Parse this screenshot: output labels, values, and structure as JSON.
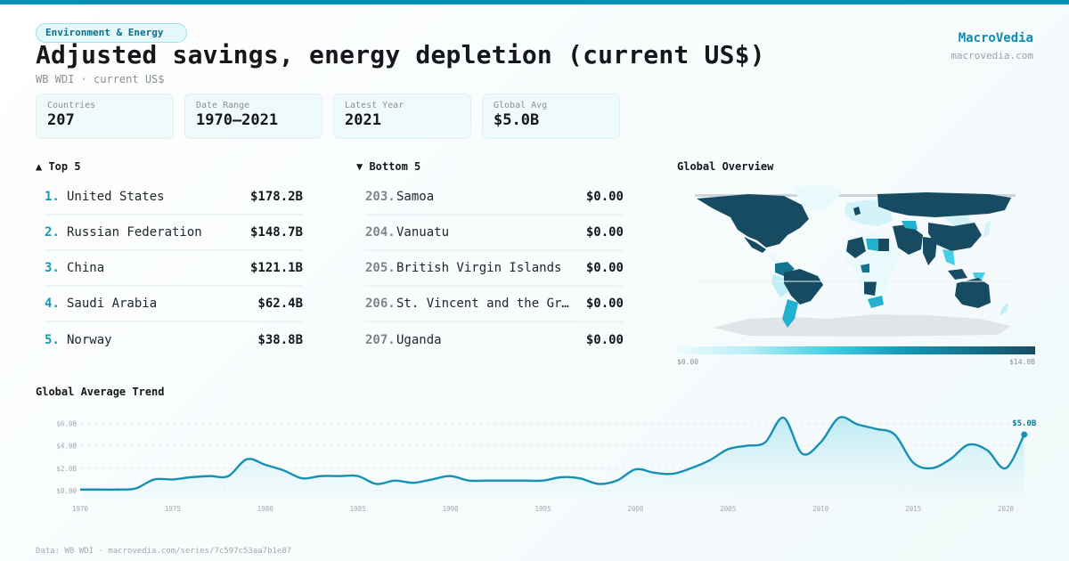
{
  "header": {
    "category_pill": "Environment & Energy",
    "title": "Adjusted savings, energy depletion (current US$)",
    "subtitle": "WB WDI · current US$"
  },
  "brand": {
    "name": "MacroVedia",
    "url": "macrovedia.com"
  },
  "stats": [
    {
      "label": "Countries",
      "value": "207"
    },
    {
      "label": "Date Range",
      "value": "1970–2021"
    },
    {
      "label": "Latest Year",
      "value": "2021"
    },
    {
      "label": "Global Avg",
      "value": "$5.0B"
    }
  ],
  "top5": {
    "title": "▲ Top 5",
    "items": [
      {
        "rank": "1.",
        "name": "United States",
        "value": "$178.2B"
      },
      {
        "rank": "2.",
        "name": "Russian Federation",
        "value": "$148.7B"
      },
      {
        "rank": "3.",
        "name": "China",
        "value": "$121.1B"
      },
      {
        "rank": "4.",
        "name": "Saudi Arabia",
        "value": "$62.4B"
      },
      {
        "rank": "5.",
        "name": "Norway",
        "value": "$38.8B"
      }
    ]
  },
  "bottom5": {
    "title": "▼ Bottom 5",
    "items": [
      {
        "rank": "203.",
        "name": "Samoa",
        "value": "$0.00"
      },
      {
        "rank": "204.",
        "name": "Vanuatu",
        "value": "$0.00"
      },
      {
        "rank": "205.",
        "name": "British Virgin Islands",
        "value": "$0.00"
      },
      {
        "rank": "206.",
        "name": "St. Vincent and the Gr…",
        "value": "$0.00"
      },
      {
        "rank": "207.",
        "name": "Uganda",
        "value": "$0.00"
      }
    ]
  },
  "map": {
    "title": "Global Overview",
    "legend_min": "$0.00",
    "legend_max": "$14.0B",
    "colors": {
      "max": "#164b62",
      "high": "#14738f",
      "mid": "#21b1cf",
      "low": "#bdeff7",
      "min": "#eaf9fc",
      "no_data": "#e2e5e8"
    }
  },
  "trend": {
    "title": "Global Average Trend",
    "end_label": "$5.0B"
  },
  "colors": {
    "accent": "#0a8db3",
    "line": "#1690b3",
    "text": "#15171a",
    "muted": "#8a8f94"
  },
  "footer": {
    "text": "Data: WB WDI · macrovedia.com/series/7c597c53aa7b1e87"
  },
  "chart_data": {
    "type": "area",
    "title": "Global Average Trend",
    "xlabel": "",
    "ylabel": "",
    "x": [
      1970,
      1971,
      1972,
      1973,
      1974,
      1975,
      1976,
      1977,
      1978,
      1979,
      1980,
      1981,
      1982,
      1983,
      1984,
      1985,
      1986,
      1987,
      1988,
      1989,
      1990,
      1991,
      1992,
      1993,
      1994,
      1995,
      1996,
      1997,
      1998,
      1999,
      2000,
      2001,
      2002,
      2003,
      2004,
      2005,
      2006,
      2007,
      2008,
      2009,
      2010,
      2011,
      2012,
      2013,
      2014,
      2015,
      2016,
      2017,
      2018,
      2019,
      2020,
      2021
    ],
    "series": [
      {
        "name": "Global Average (current US$, billions)",
        "values": [
          0.1,
          0.1,
          0.1,
          0.2,
          1.0,
          1.0,
          1.2,
          1.3,
          1.3,
          2.8,
          2.3,
          1.8,
          1.1,
          1.3,
          1.3,
          1.3,
          0.6,
          0.9,
          0.7,
          1.0,
          1.3,
          0.9,
          0.9,
          0.9,
          0.9,
          0.9,
          1.2,
          1.1,
          0.6,
          0.9,
          1.9,
          1.6,
          1.5,
          2.0,
          2.7,
          3.7,
          4.0,
          4.3,
          6.5,
          3.3,
          4.3,
          6.5,
          5.9,
          5.5,
          5.0,
          2.5,
          2.0,
          2.8,
          4.1,
          3.6,
          2.0,
          5.0
        ]
      }
    ],
    "yticks": [
      "$0.00",
      "$2.0B",
      "$4.0B",
      "$6.0B"
    ],
    "xticks": [
      "1970",
      "1975",
      "1980",
      "1985",
      "1990",
      "1995",
      "2000",
      "2005",
      "2010",
      "2015",
      "2020"
    ],
    "ylim": [
      0,
      7
    ],
    "grid": true,
    "annotations": [
      {
        "x": 2021,
        "y": 5.0,
        "text": "$5.0B"
      }
    ],
    "legend": "none"
  }
}
